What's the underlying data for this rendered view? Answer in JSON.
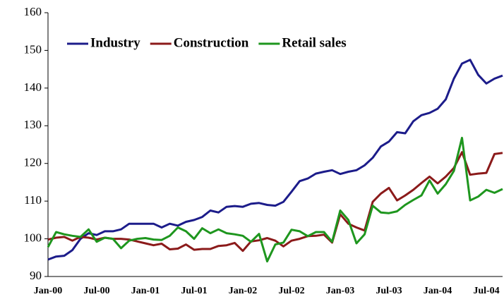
{
  "chart_data": {
    "type": "line",
    "categories": [
      "Jan-00",
      null,
      null,
      null,
      null,
      null,
      "Jul-00",
      null,
      null,
      null,
      null,
      null,
      "Jan-01",
      null,
      null,
      null,
      null,
      null,
      "Jul-01",
      null,
      null,
      null,
      null,
      null,
      "Jan-02",
      null,
      null,
      null,
      null,
      null,
      "Jul-02",
      null,
      null,
      null,
      null,
      null,
      "Jan-03",
      null,
      null,
      null,
      null,
      null,
      "Jul-03",
      null,
      null,
      null,
      null,
      null,
      "Jan-04",
      null,
      null,
      null,
      null,
      null,
      "Jul-04",
      null,
      null
    ],
    "series": [
      {
        "name": "Industry",
        "color": "#1c1c8a",
        "values": [
          94.5,
          95.3,
          95.5,
          97,
          100,
          101.5,
          101,
          102,
          102,
          102.5,
          104,
          104,
          104,
          104,
          103,
          104,
          103.5,
          104.5,
          105,
          105.8,
          107.5,
          107,
          108.5,
          108.7,
          108.5,
          109.3,
          109.5,
          109,
          108.8,
          109.8,
          112.5,
          115.3,
          116,
          117.3,
          117.8,
          118.2,
          117.2,
          117.8,
          118.2,
          119.5,
          121.5,
          124.5,
          125.8,
          128.3,
          128,
          131.2,
          132.8,
          133.4,
          134.5,
          137,
          142.5,
          146.5,
          147.5,
          143.5,
          141.2,
          142.5,
          143.3
        ]
      },
      {
        "name": "Construction",
        "color": "#8b1a1a",
        "values": [
          99.8,
          100.3,
          100.5,
          99.5,
          100.5,
          100.3,
          99.8,
          100.3,
          100,
          100,
          99.8,
          99.3,
          98.8,
          98.3,
          98.7,
          97.2,
          97.4,
          98.5,
          97.1,
          97.3,
          97.3,
          98.1,
          98.3,
          98.9,
          96.8,
          99.3,
          99.6,
          100.2,
          99.5,
          98,
          99.5,
          100,
          100.7,
          100.8,
          101.1,
          99,
          106.5,
          104,
          103,
          102.2,
          109.8,
          112,
          113.5,
          110.2,
          111.5,
          113,
          114.8,
          116.5,
          114.7,
          116.5,
          118.8,
          123,
          117,
          117.3,
          117.5,
          122.5,
          122.8
        ]
      },
      {
        "name": "Retail sales",
        "color": "#1e961e",
        "values": [
          97.8,
          101.8,
          101.2,
          100.8,
          100.5,
          102.5,
          99.2,
          100.3,
          100,
          97.5,
          99.5,
          100,
          100.2,
          99.8,
          99.7,
          100.8,
          103,
          102,
          100,
          102.8,
          101.5,
          102.5,
          101.5,
          101.2,
          100.8,
          99.2,
          101.3,
          94,
          98.5,
          99,
          102.4,
          102,
          100.7,
          101.8,
          101.8,
          99.2,
          107.5,
          105,
          98.8,
          101.2,
          108.8,
          107,
          106.8,
          107.3,
          109,
          110.3,
          111.5,
          115.5,
          112,
          114.5,
          118,
          126.8,
          110.2,
          111.2,
          113,
          112.2,
          113.2
        ]
      }
    ],
    "ylim": [
      90,
      160
    ],
    "yticks": [
      90,
      100,
      110,
      120,
      130,
      140,
      150,
      160
    ],
    "grid": false
  }
}
